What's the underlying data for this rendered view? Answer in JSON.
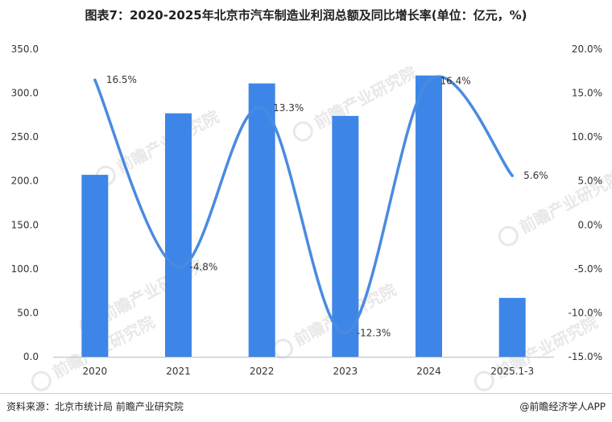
{
  "title": "图表7：2020-2025年北京市汽车制造业利润总额及同比增长率(单位：亿元，%)",
  "source": "资料来源：北京市统计局 前瞻产业研究院",
  "brand": "@前瞻经济学人APP",
  "watermark": "前瞻产业研究院",
  "colors": {
    "bar": "#3d86e8",
    "line": "#4a8be0",
    "text": "#333333",
    "axis": "#bfbfbf",
    "watermark": "#e8e8e8"
  },
  "chart_data": {
    "type": "bar",
    "categories": [
      "2020",
      "2021",
      "2022",
      "2023",
      "2024",
      "2025.1-3"
    ],
    "series": [
      {
        "type": "bar",
        "axis": "left",
        "values": [
          207.0,
          277.0,
          311.0,
          274.0,
          320.0,
          67.0
        ]
      },
      {
        "type": "line",
        "axis": "right",
        "values": [
          16.5,
          -4.8,
          13.3,
          -12.3,
          16.4,
          5.6
        ],
        "labels": [
          "16.5%",
          "-4.8%",
          "13.3%",
          "-12.3%",
          "16.4%",
          "5.6%"
        ]
      }
    ],
    "y_left": {
      "min": 0,
      "max": 350,
      "ticks": [
        "0.0",
        "50.0",
        "100.0",
        "150.0",
        "200.0",
        "250.0",
        "300.0",
        "350.0"
      ]
    },
    "y_right": {
      "min": -15,
      "max": 20,
      "ticks": [
        "-15.0%",
        "-10.0%",
        "-5.0%",
        "0.0%",
        "5.0%",
        "10.0%",
        "15.0%",
        "20.0%"
      ]
    },
    "grid": false,
    "legend": "none"
  }
}
